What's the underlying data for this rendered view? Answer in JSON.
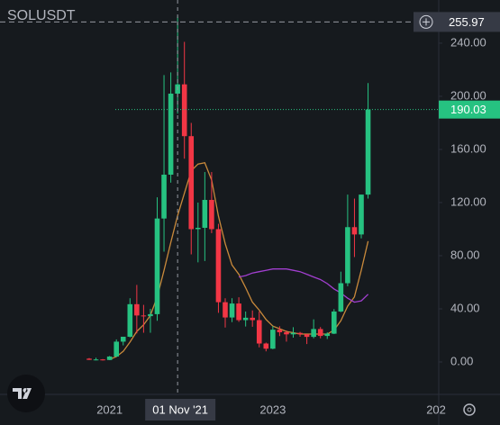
{
  "chart_data": {
    "type": "candlestick",
    "title": "SOLUSDT",
    "categories": [
      null,
      null,
      null,
      "2021",
      null,
      null,
      null,
      null,
      null,
      null,
      null,
      null,
      null,
      "01 Nov '21",
      null,
      null,
      null,
      null,
      null,
      null,
      null,
      null,
      null,
      null,
      null,
      null,
      null,
      "2023",
      null,
      null,
      null,
      null,
      null,
      null,
      null,
      null,
      null,
      null,
      null,
      null,
      null,
      null,
      null,
      null,
      null,
      null,
      null,
      null,
      null,
      null,
      null,
      "202"
    ],
    "open": [
      2.5,
      1.6,
      1.9,
      1.5,
      4.1,
      15.3,
      19,
      43.5,
      35,
      34.5,
      36,
      108,
      141,
      202,
      209,
      170,
      100,
      101,
      122,
      100,
      45,
      33.5,
      44,
      31.5,
      33.3,
      31.5,
      13.9,
      10,
      24.3,
      22.4,
      20.8,
      21.9,
      20.9,
      18.9,
      24.8,
      19.6,
      21.3,
      38,
      59.3,
      101.5,
      96,
      126,
      null,
      null,
      null,
      null,
      null,
      null,
      null,
      null,
      null,
      null
    ],
    "high": [
      3,
      3.2,
      2.2,
      4.5,
      17,
      17.5,
      48,
      58,
      43,
      40,
      124,
      216,
      218,
      260,
      241,
      180,
      120,
      143,
      143,
      104,
      48,
      48,
      48.7,
      38,
      38.8,
      38,
      14.6,
      27,
      26.9,
      23.7,
      26.2,
      22.6,
      21,
      32.1,
      26.3,
      22.3,
      39.8,
      68,
      126,
      123,
      126,
      210,
      null,
      null,
      null,
      null,
      null,
      null,
      null,
      null,
      null,
      null
    ],
    "low": [
      1.5,
      1.2,
      1.1,
      1.4,
      3.8,
      12.5,
      18.5,
      21.5,
      22,
      22,
      31,
      83,
      135,
      187,
      153,
      81,
      75,
      76,
      97,
      37,
      25.9,
      30,
      30.2,
      26.7,
      26.5,
      11,
      8,
      9.6,
      19.5,
      15.3,
      18.3,
      19,
      13.5,
      17.8,
      17.8,
      17.3,
      21,
      37.5,
      57,
      79,
      93,
      123,
      null,
      null,
      null,
      null,
      null,
      null,
      null,
      null,
      null,
      null
    ],
    "close": [
      1.6,
      1.9,
      1.5,
      4.1,
      15.3,
      19,
      43.5,
      35,
      34.5,
      36,
      108,
      141,
      202,
      209,
      170,
      100,
      101,
      122,
      100,
      45,
      33.5,
      44,
      31.5,
      33.3,
      31.5,
      13.9,
      10,
      24.3,
      22.4,
      20.8,
      21.9,
      20.9,
      18.9,
      24.8,
      19.6,
      21.3,
      38,
      59.3,
      101.5,
      96,
      126,
      190.03,
      null,
      null,
      null,
      null,
      null,
      null,
      null,
      null,
      null,
      null
    ],
    "up_color": "#26c281",
    "down_color": "#f23645",
    "moving_averages": [
      {
        "color": "#c8893b",
        "values": [
          null,
          null,
          null,
          2,
          4,
          8,
          15,
          23,
          28,
          35,
          49,
          69,
          90,
          110,
          127,
          144,
          149,
          150,
          137,
          110,
          89,
          73,
          66,
          56,
          45,
          39,
          32,
          27,
          25,
          23,
          22,
          21,
          21,
          21,
          21,
          21,
          24,
          31,
          42,
          49,
          69,
          91,
          null,
          null,
          null,
          null,
          null,
          null,
          null,
          null,
          null,
          null
        ]
      },
      {
        "color": "#a23fd0",
        "values": [
          null,
          null,
          null,
          null,
          null,
          null,
          null,
          null,
          null,
          null,
          null,
          null,
          null,
          null,
          null,
          null,
          null,
          null,
          null,
          null,
          null,
          null,
          64,
          65,
          67,
          68,
          69,
          70,
          70,
          70,
          69,
          68,
          66,
          64,
          62,
          59,
          55,
          52,
          48,
          45,
          46,
          51,
          null,
          null,
          null,
          null,
          null,
          null,
          null,
          null,
          null,
          null
        ]
      }
    ],
    "ylim": [
      -24.4,
      272.5
    ],
    "yticks": [
      {
        "value": 0,
        "label": "0.00"
      },
      {
        "value": 40,
        "label": "40.00"
      },
      {
        "value": 80,
        "label": "80.00"
      },
      {
        "value": 120,
        "label": "120.00"
      },
      {
        "value": 160,
        "label": "160.00"
      },
      {
        "value": 200,
        "label": "200.00"
      },
      {
        "value": 240,
        "label": "240.00"
      }
    ],
    "last_price": 190.03,
    "crosshair": {
      "category": "01 Nov '21",
      "price": 255.97
    }
  }
}
